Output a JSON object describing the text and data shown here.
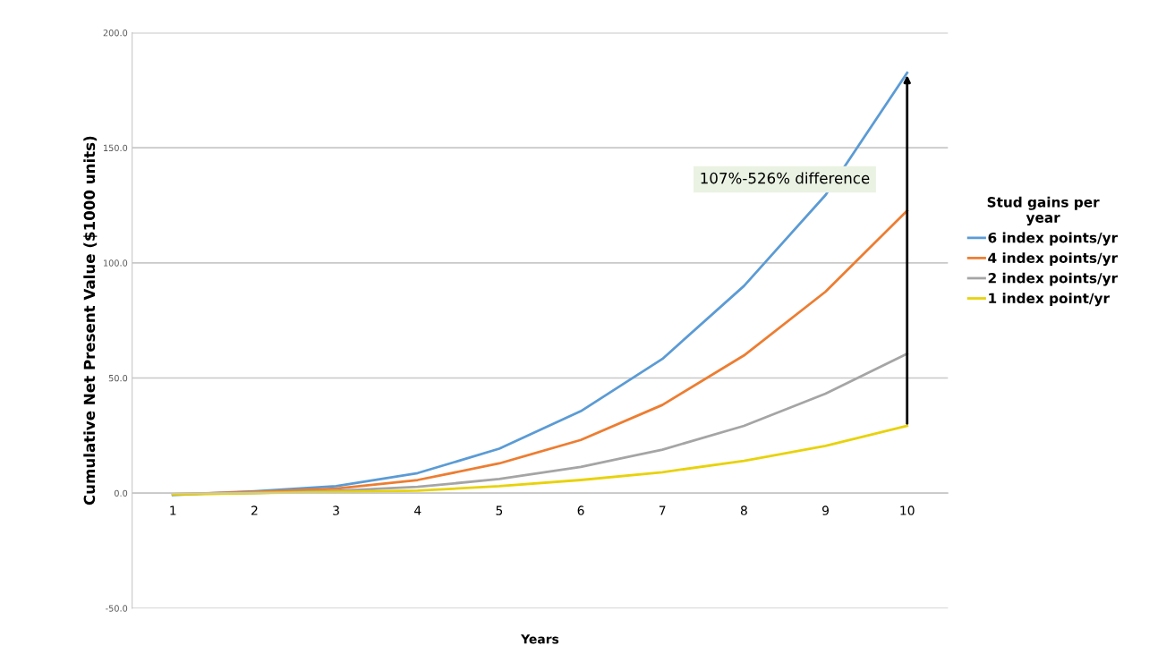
{
  "chart_data": {
    "type": "line",
    "xlabel": "Years",
    "ylabel": "Cumulative Net Present Value ($1000 units)",
    "legend_title": "Stud gains per\nyear",
    "categories": [
      "1",
      "2",
      "3",
      "4",
      "5",
      "6",
      "7",
      "8",
      "9",
      "10"
    ],
    "series": [
      {
        "name": "6 index points/yr",
        "color": "#5b9bd5",
        "values": [
          -0.8,
          0.8,
          3,
          8.7,
          19.3,
          35.6,
          58.3,
          90,
          129.5,
          182.6
        ]
      },
      {
        "name": "4 index points/yr",
        "color": "#ed7d31",
        "values": [
          -0.5,
          0.5,
          2,
          5.7,
          12.9,
          23.1,
          38.3,
          59.8,
          87.5,
          122.7
        ]
      },
      {
        "name": "2 index points/yr",
        "color": "#a5a5a5",
        "values": [
          -0.5,
          0,
          1,
          2.7,
          6.1,
          11.4,
          18.9,
          29.2,
          43.2,
          60.6
        ]
      },
      {
        "name": "1 index point/yr",
        "color": "#e8d20a",
        "values": [
          -0.5,
          0,
          0.5,
          1.1,
          3,
          5.7,
          9.1,
          14,
          20.5,
          29.2
        ]
      }
    ],
    "ylim": [
      -50,
      200
    ],
    "yticks": [
      {
        "value": -50,
        "label": "-50.0"
      },
      {
        "value": 0,
        "label": "0.0"
      },
      {
        "value": 50,
        "label": "50.0"
      },
      {
        "value": 100,
        "label": "100.0"
      },
      {
        "value": 150,
        "label": "150.0"
      },
      {
        "value": 200,
        "label": "200.0"
      }
    ],
    "grid": "y",
    "legend": "right",
    "marker": "none",
    "line_style": "solid",
    "annotations": [
      "107%-526% difference"
    ]
  }
}
